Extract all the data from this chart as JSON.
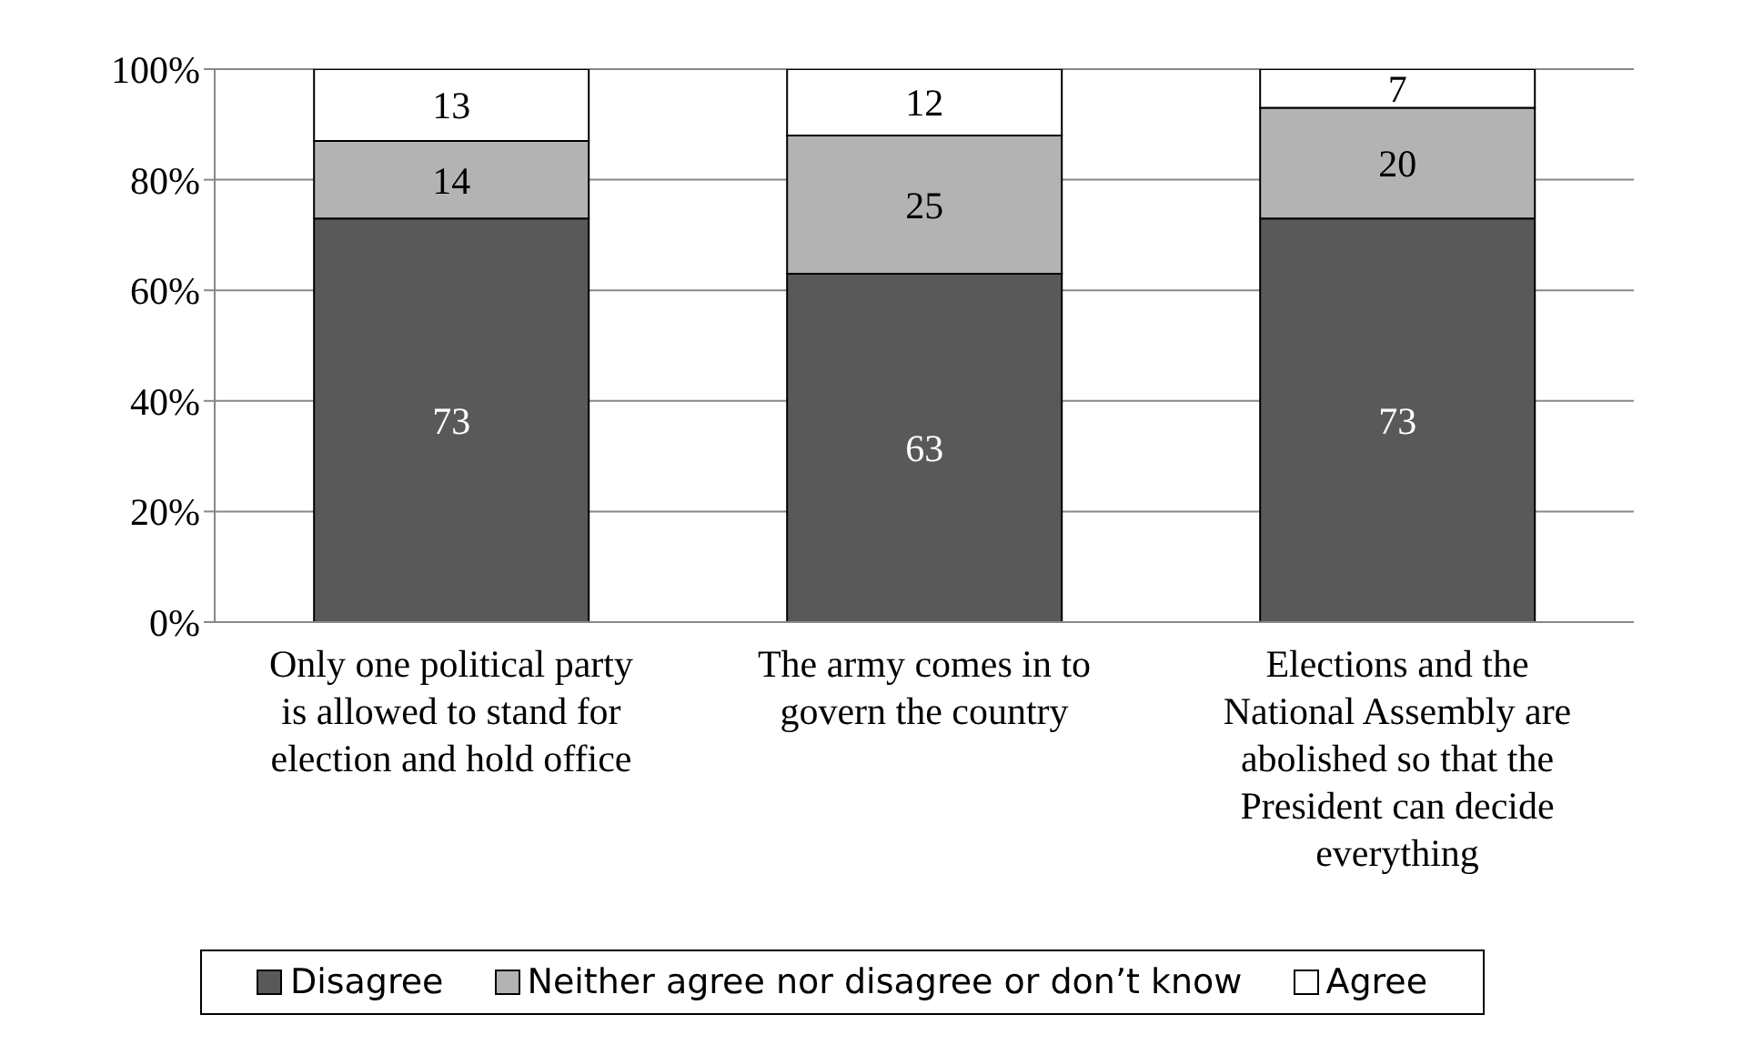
{
  "chart_data": {
    "type": "bar",
    "stacked": true,
    "data_labels": true,
    "grid": "y",
    "legend": "bottom",
    "categories": [
      "Only one political party is allowed to stand for election and hold office",
      "The army comes in to govern the country",
      "Elections and the National Assembly are abolished so that the President can decide everything"
    ],
    "series": [
      {
        "name": "Disagree",
        "color": "#595959",
        "values": [
          73,
          63,
          73
        ]
      },
      {
        "name": "Neither agree nor disagree or don’t know",
        "color": "#b3b3b3",
        "values": [
          14,
          25,
          20
        ]
      },
      {
        "name": "Agree",
        "color": "#ffffff",
        "values": [
          13,
          12,
          7
        ]
      }
    ],
    "ylim": [
      0,
      100
    ],
    "yticks": [
      {
        "value": 0,
        "label": "0%"
      },
      {
        "value": 20,
        "label": "20%"
      },
      {
        "value": 40,
        "label": "40%"
      },
      {
        "value": 60,
        "label": "60%"
      },
      {
        "value": 80,
        "label": "80%"
      },
      {
        "value": 100,
        "label": "100%"
      }
    ]
  }
}
